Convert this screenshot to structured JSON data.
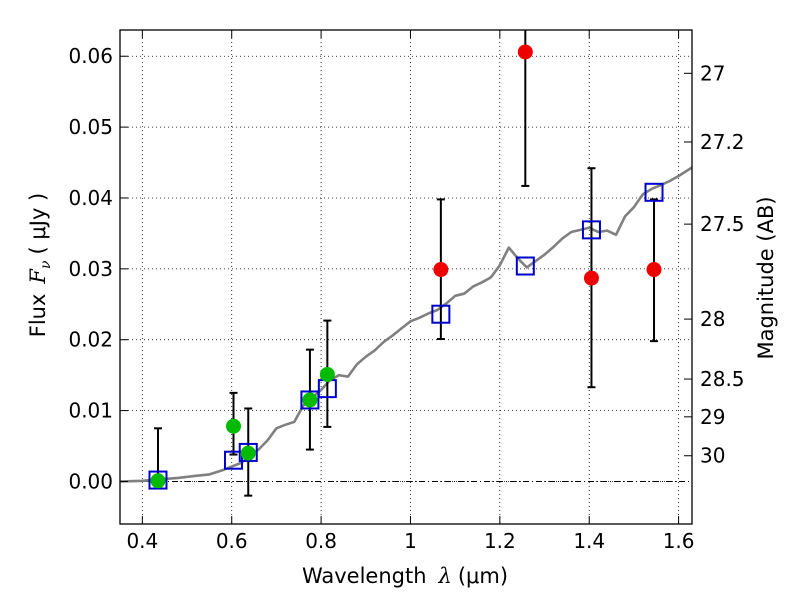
{
  "chart_data": {
    "type": "scatter",
    "xlabel": {
      "prefix": "Wavelength",
      "symbol": "λ",
      "unit": "(μm)"
    },
    "ylabel": {
      "prefix": "Flux",
      "symbol": "F",
      "subscript": "ν",
      "unit": "( μJy )"
    },
    "y2label": "Magnitude (AB)",
    "xlim": [
      0.35,
      1.63
    ],
    "ylim": [
      -0.006,
      0.0637
    ],
    "grid": true,
    "x_ticks": [
      {
        "value": 0.4,
        "label": "0.4"
      },
      {
        "value": 0.6,
        "label": "0.6"
      },
      {
        "value": 0.8,
        "label": "0.8"
      },
      {
        "value": 1.0,
        "label": "1"
      },
      {
        "value": 1.2,
        "label": "1.2"
      },
      {
        "value": 1.4,
        "label": "1.4"
      },
      {
        "value": 1.6,
        "label": "1.6"
      }
    ],
    "y_ticks": [
      {
        "value": 0.0,
        "label": "0.00"
      },
      {
        "value": 0.01,
        "label": "0.01"
      },
      {
        "value": 0.02,
        "label": "0.02"
      },
      {
        "value": 0.03,
        "label": "0.03"
      },
      {
        "value": 0.04,
        "label": "0.04"
      },
      {
        "value": 0.05,
        "label": "0.05"
      },
      {
        "value": 0.06,
        "label": "0.06"
      }
    ],
    "magnitude_ticks": [
      {
        "value": 0.05759,
        "label": "27"
      },
      {
        "value": 0.0479,
        "label": "27.2"
      },
      {
        "value": 0.03631,
        "label": "27.5"
      },
      {
        "value": 0.02291,
        "label": "28"
      },
      {
        "value": 0.01445,
        "label": "28.5"
      },
      {
        "value": 0.00912,
        "label": "29"
      },
      {
        "value": 0.00363,
        "label": "30"
      }
    ],
    "series": [
      {
        "name": "green detections",
        "color": "#00bb00",
        "marker": "circle",
        "points": [
          {
            "x": 0.435,
            "y": 0.0001,
            "yerr_low": 0.0,
            "yerr_high": 0.0075
          },
          {
            "x": 0.604,
            "y": 0.0078,
            "yerr_low": 0.0038,
            "yerr_high": 0.0125
          },
          {
            "x": 0.637,
            "y": 0.004,
            "yerr_low": -0.002,
            "yerr_high": 0.0103
          },
          {
            "x": 0.775,
            "y": 0.0115,
            "yerr_low": 0.0045,
            "yerr_high": 0.0186
          },
          {
            "x": 0.814,
            "y": 0.0151,
            "yerr_low": 0.0077,
            "yerr_high": 0.0227
          }
        ]
      },
      {
        "name": "red detections",
        "color": "#ee0000",
        "marker": "circle",
        "points": [
          {
            "x": 1.068,
            "y": 0.0299,
            "yerr_low": 0.0201,
            "yerr_high": 0.0398
          },
          {
            "x": 1.257,
            "y": 0.0606,
            "yerr_low": 0.0417,
            "yerr_high": 0.0637
          },
          {
            "x": 1.405,
            "y": 0.0287,
            "yerr_low": 0.0133,
            "yerr_high": 0.0442
          },
          {
            "x": 1.545,
            "y": 0.0299,
            "yerr_low": 0.0198,
            "yerr_high": 0.0398
          }
        ]
      },
      {
        "name": "model photometry",
        "color": "#0000cc",
        "marker": "open-square",
        "points": [
          {
            "x": 0.435,
            "y": 0.0002
          },
          {
            "x": 0.604,
            "y": 0.003
          },
          {
            "x": 0.637,
            "y": 0.0041
          },
          {
            "x": 0.775,
            "y": 0.0115
          },
          {
            "x": 0.814,
            "y": 0.0131
          },
          {
            "x": 1.068,
            "y": 0.0236
          },
          {
            "x": 1.257,
            "y": 0.0304
          },
          {
            "x": 1.405,
            "y": 0.0355
          },
          {
            "x": 1.545,
            "y": 0.0408
          }
        ]
      },
      {
        "name": "model spectrum",
        "color": "#808080",
        "marker": "line",
        "points": [
          [
            0.35,
            0.0
          ],
          [
            0.4,
            0.0001
          ],
          [
            0.44,
            0.0003
          ],
          [
            0.48,
            0.0005
          ],
          [
            0.52,
            0.0008
          ],
          [
            0.55,
            0.001
          ],
          [
            0.58,
            0.0016
          ],
          [
            0.6,
            0.0021
          ],
          [
            0.62,
            0.0026
          ],
          [
            0.64,
            0.0035
          ],
          [
            0.66,
            0.0045
          ],
          [
            0.68,
            0.0058
          ],
          [
            0.7,
            0.0075
          ],
          [
            0.72,
            0.008
          ],
          [
            0.74,
            0.0084
          ],
          [
            0.76,
            0.0107
          ],
          [
            0.78,
            0.0118
          ],
          [
            0.8,
            0.0129
          ],
          [
            0.82,
            0.0143
          ],
          [
            0.84,
            0.015
          ],
          [
            0.86,
            0.0148
          ],
          [
            0.88,
            0.0165
          ],
          [
            0.9,
            0.0176
          ],
          [
            0.92,
            0.0185
          ],
          [
            0.94,
            0.0197
          ],
          [
            0.96,
            0.0206
          ],
          [
            0.98,
            0.0216
          ],
          [
            1.0,
            0.0226
          ],
          [
            1.02,
            0.0231
          ],
          [
            1.04,
            0.0237
          ],
          [
            1.06,
            0.0242
          ],
          [
            1.08,
            0.0251
          ],
          [
            1.1,
            0.0262
          ],
          [
            1.12,
            0.0265
          ],
          [
            1.14,
            0.0275
          ],
          [
            1.16,
            0.0281
          ],
          [
            1.18,
            0.0288
          ],
          [
            1.2,
            0.0305
          ],
          [
            1.22,
            0.033
          ],
          [
            1.24,
            0.0315
          ],
          [
            1.26,
            0.0302
          ],
          [
            1.28,
            0.0311
          ],
          [
            1.3,
            0.032
          ],
          [
            1.32,
            0.0331
          ],
          [
            1.34,
            0.0343
          ],
          [
            1.36,
            0.0352
          ],
          [
            1.38,
            0.0355
          ],
          [
            1.4,
            0.0358
          ],
          [
            1.42,
            0.0352
          ],
          [
            1.44,
            0.0354
          ],
          [
            1.46,
            0.0348
          ],
          [
            1.48,
            0.0374
          ],
          [
            1.5,
            0.0387
          ],
          [
            1.52,
            0.0405
          ],
          [
            1.54,
            0.0413
          ],
          [
            1.56,
            0.0418
          ],
          [
            1.58,
            0.0424
          ],
          [
            1.6,
            0.0431
          ],
          [
            1.63,
            0.0443
          ]
        ]
      }
    ]
  }
}
